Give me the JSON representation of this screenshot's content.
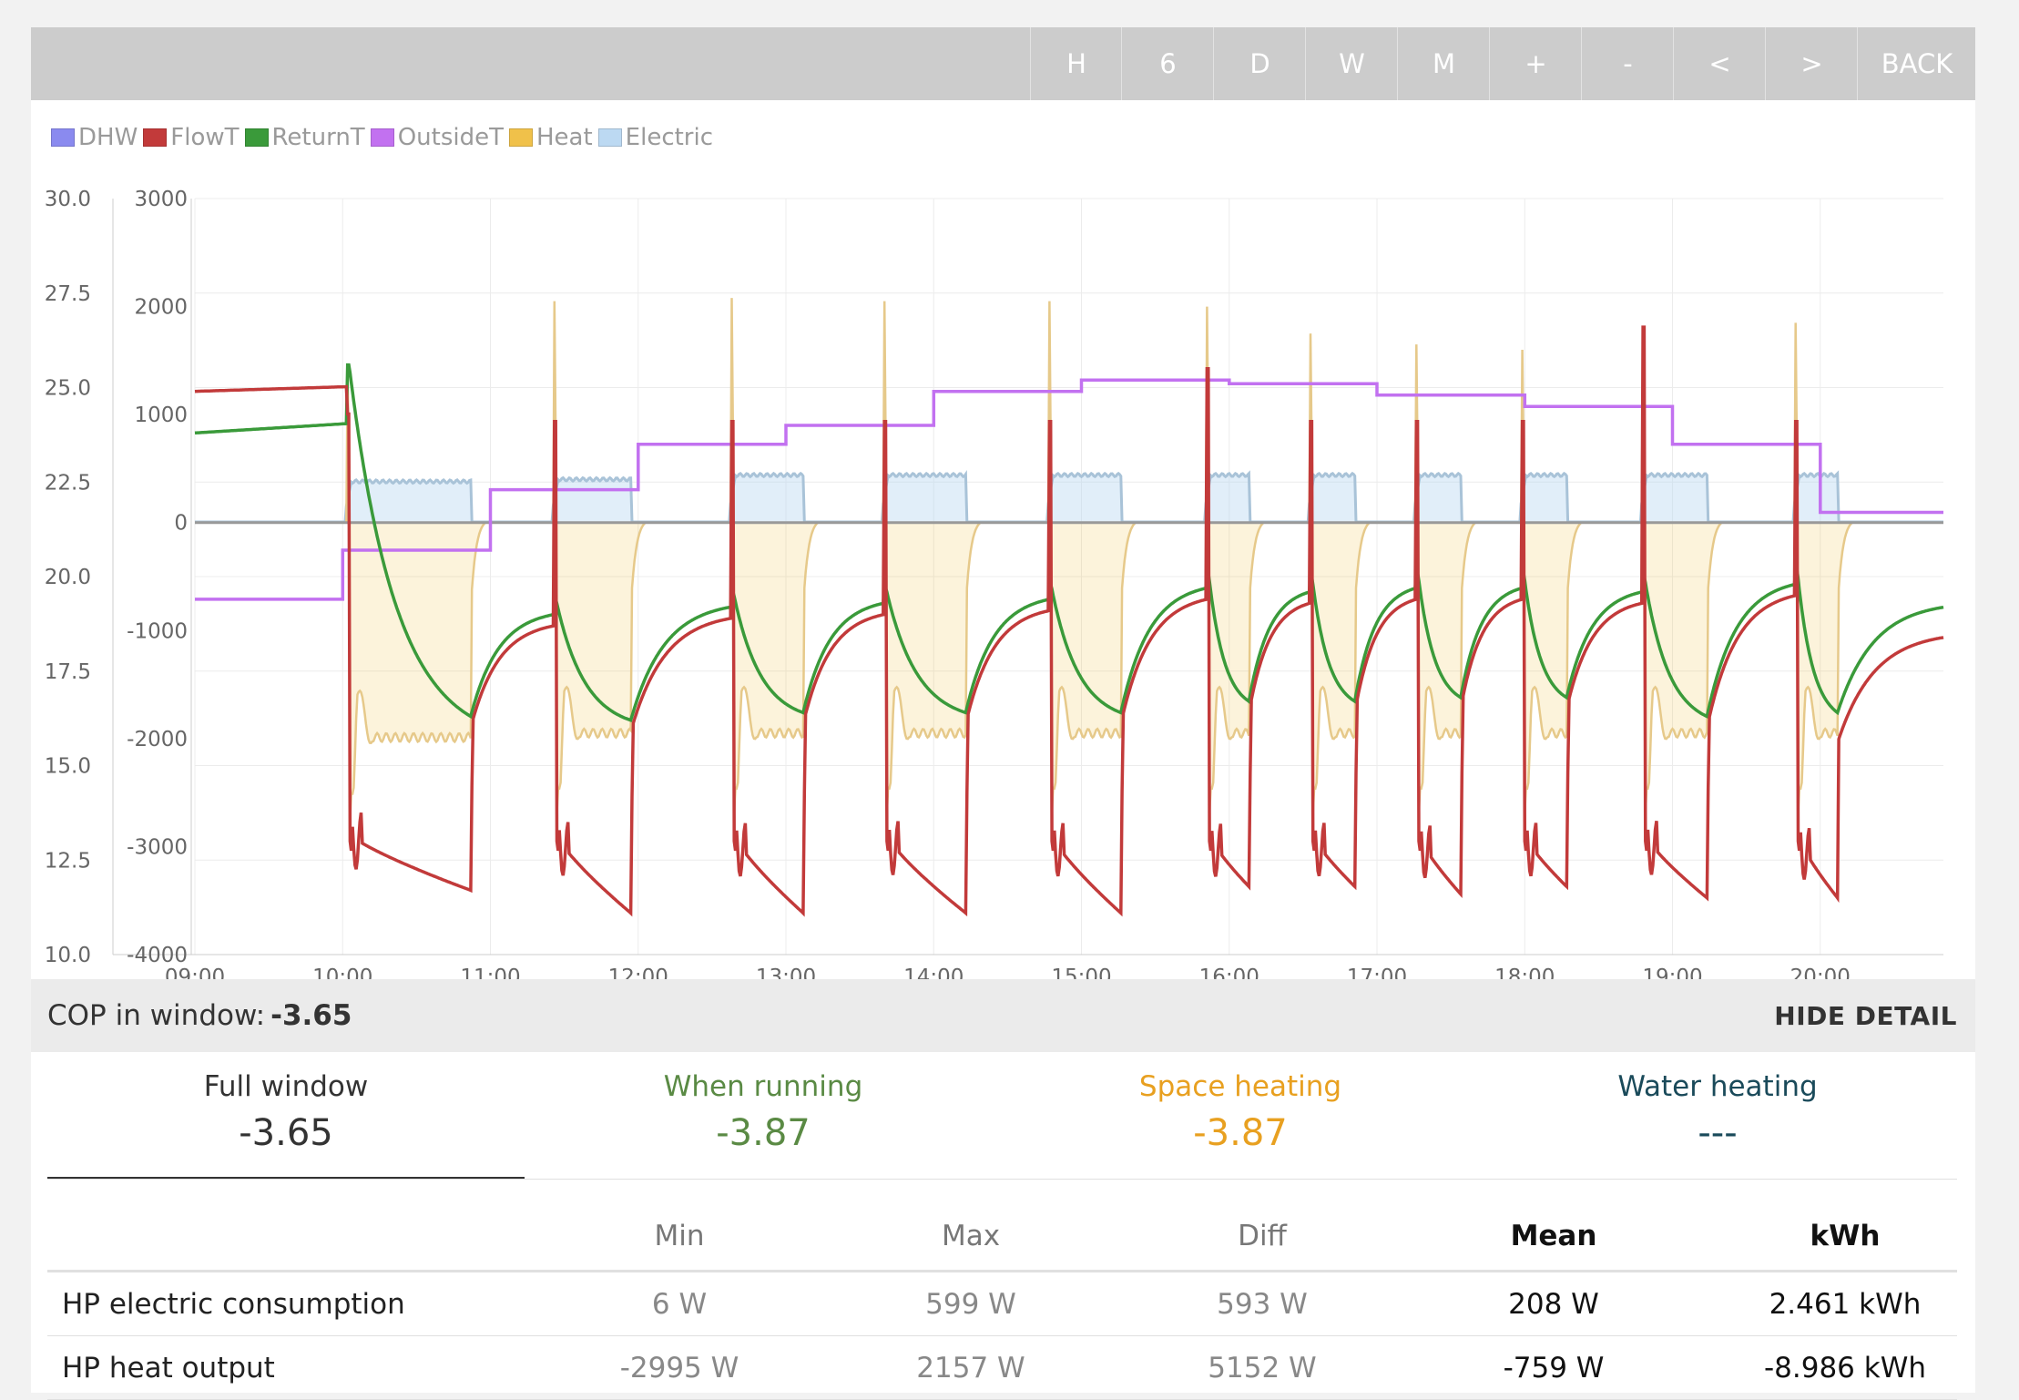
{
  "toolbar": {
    "buttons": [
      "H",
      "6",
      "D",
      "W",
      "M",
      "+",
      "-",
      "<",
      ">",
      "BACK"
    ]
  },
  "legend": [
    {
      "label": "DHW",
      "color": "#8a8aef"
    },
    {
      "label": "FlowT",
      "color": "#c23a3a"
    },
    {
      "label": "ReturnT",
      "color": "#3a9a3a"
    },
    {
      "label": "OutsideT",
      "color": "#c271f0"
    },
    {
      "label": "Heat",
      "color": "#f0c14a"
    },
    {
      "label": "Electric",
      "color": "#bcd9f2"
    }
  ],
  "chart_data": {
    "type": "line",
    "left_axis": {
      "label": "",
      "ticks": [
        "30.0",
        "27.5",
        "25.0",
        "22.5",
        "20.0",
        "17.5",
        "15.0",
        "12.5",
        "10.0"
      ],
      "range": [
        10,
        30
      ]
    },
    "right_axis": {
      "label": "",
      "ticks": [
        "3000",
        "2000",
        "1000",
        "0",
        "-1000",
        "-2000",
        "-3000",
        "-4000"
      ],
      "range": [
        -4000,
        3000
      ]
    },
    "x_range": [
      "09:00",
      "20:50"
    ],
    "x_ticks": [
      "09:00",
      "10:00",
      "11:00",
      "12:00",
      "13:00",
      "14:00",
      "15:00",
      "16:00",
      "17:00",
      "18:00",
      "19:00",
      "20:00"
    ],
    "grid": true,
    "legend_position": "top-left",
    "cycles": [
      {
        "start": "10:02",
        "end": "10:52",
        "flow_min": 11.7,
        "return_min": 16.3,
        "heat_min": -1990,
        "elec": 380
      },
      {
        "start": "11:26",
        "end": "11:57",
        "flow_min": 11.1,
        "return_min": 16.2,
        "heat_min": -1950,
        "elec": 400
      },
      {
        "start": "12:38",
        "end": "13:07",
        "flow_min": 11.1,
        "return_min": 16.4,
        "heat_min": -1950,
        "elec": 440
      },
      {
        "start": "13:40",
        "end": "14:13",
        "flow_min": 11.1,
        "return_min": 16.4,
        "heat_min": -1950,
        "elec": 440
      },
      {
        "start": "14:47",
        "end": "15:16",
        "flow_min": 11.1,
        "return_min": 16.4,
        "heat_min": -1950,
        "elec": 440
      },
      {
        "start": "15:51",
        "end": "16:08",
        "flow_min": 11.8,
        "return_min": 16.7,
        "heat_min": -1950,
        "elec": 440
      },
      {
        "start": "16:33",
        "end": "16:51",
        "flow_min": 11.8,
        "return_min": 16.7,
        "heat_min": -1950,
        "elec": 440
      },
      {
        "start": "17:16",
        "end": "17:34",
        "flow_min": 11.6,
        "return_min": 16.8,
        "heat_min": -1950,
        "elec": 440
      },
      {
        "start": "17:59",
        "end": "18:17",
        "flow_min": 11.8,
        "return_min": 16.8,
        "heat_min": -1950,
        "elec": 440
      },
      {
        "start": "18:48",
        "end": "19:14",
        "flow_min": 11.5,
        "return_min": 16.3,
        "heat_min": -1950,
        "elec": 440
      },
      {
        "start": "19:50",
        "end": "20:07",
        "flow_min": 11.5,
        "return_min": 16.4,
        "heat_min": -1950,
        "elec": 440
      }
    ],
    "spikes": [
      {
        "t": "10:02",
        "flow": 24.3,
        "return": 25.6,
        "heat": 1400
      },
      {
        "t": "11:26",
        "flow": 24.1,
        "return": 19.4,
        "heat": 2050
      },
      {
        "t": "12:38",
        "flow": 24.1,
        "return": 19.6,
        "heat": 2080
      },
      {
        "t": "13:40",
        "flow": 24.1,
        "return": 19.7,
        "heat": 2050
      },
      {
        "t": "14:47",
        "flow": 24.1,
        "return": 19.8,
        "heat": 2050
      },
      {
        "t": "15:51",
        "flow": 25.5,
        "return": 20.1,
        "heat": 2000
      },
      {
        "t": "16:33",
        "flow": 24.1,
        "return": 20.0,
        "heat": 1750
      },
      {
        "t": "17:16",
        "flow": 24.1,
        "return": 20.1,
        "heat": 1650
      },
      {
        "t": "17:59",
        "flow": 24.1,
        "return": 20.1,
        "heat": 1600
      },
      {
        "t": "18:48",
        "flow": 26.6,
        "return": 20.0,
        "heat": 1800
      },
      {
        "t": "19:50",
        "flow": 24.1,
        "return": 20.2,
        "heat": 1850
      }
    ],
    "start_values": {
      "flow": 24.9,
      "return": 23.8
    },
    "end_values": {
      "flow": 18.4,
      "return": 19.2
    },
    "outside_steps": [
      {
        "from": "09:00",
        "to": "10:00",
        "value": 19.4
      },
      {
        "from": "10:00",
        "to": "11:00",
        "value": 20.7
      },
      {
        "from": "11:00",
        "to": "12:00",
        "value": 22.3
      },
      {
        "from": "12:00",
        "to": "13:00",
        "value": 23.5
      },
      {
        "from": "13:00",
        "to": "14:00",
        "value": 24.0
      },
      {
        "from": "14:00",
        "to": "15:00",
        "value": 24.9
      },
      {
        "from": "15:00",
        "to": "16:00",
        "value": 25.2
      },
      {
        "from": "16:00",
        "to": "17:00",
        "value": 25.1
      },
      {
        "from": "17:00",
        "to": "18:00",
        "value": 24.8
      },
      {
        "from": "18:00",
        "to": "19:00",
        "value": 24.5
      },
      {
        "from": "19:00",
        "to": "20:00",
        "value": 23.5
      },
      {
        "from": "20:00",
        "to": "20:50",
        "value": 21.7
      }
    ]
  },
  "detail": {
    "cop_label": "COP in window:",
    "cop_value": "-3.65",
    "hide_label": "HIDE DETAIL",
    "tabs": [
      {
        "label": "Full window",
        "value": "-3.65",
        "color": "#333333"
      },
      {
        "label": "When running",
        "value": "-3.87",
        "color": "#5a8a44"
      },
      {
        "label": "Space heating",
        "value": "-3.87",
        "color": "#e8a020"
      },
      {
        "label": "Water heating",
        "value": "---",
        "color": "#1a4a5a"
      }
    ],
    "table": {
      "headers": [
        "Min",
        "Max",
        "Diff",
        "Mean",
        "kWh"
      ],
      "rows": [
        {
          "name": "HP electric consumption",
          "min": "6 W",
          "max": "599 W",
          "diff": "593 W",
          "mean": "208 W",
          "kwh": "2.461 kWh"
        },
        {
          "name": "HP heat output",
          "min": "-2995 W",
          "max": "2157 W",
          "diff": "5152 W",
          "mean": "-759 W",
          "kwh": "-8.986 kWh"
        }
      ]
    }
  }
}
